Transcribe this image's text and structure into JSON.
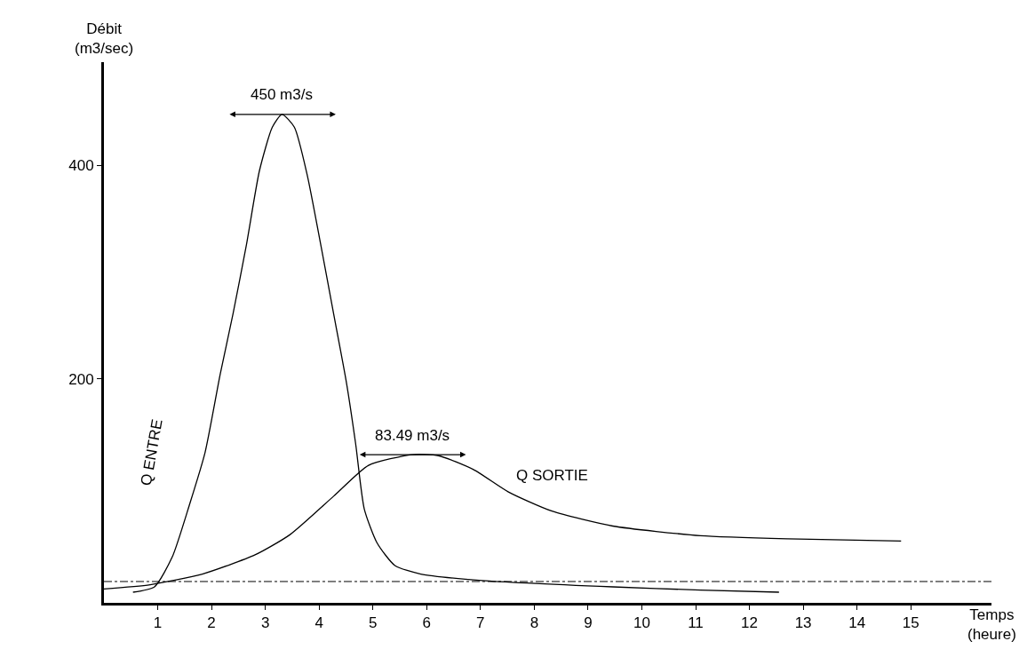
{
  "chart_data": {
    "type": "line",
    "xlabel": "Temps\n(heure)",
    "ylabel": "Débit\n(m3/sec)",
    "series": [
      {
        "name": "Q ENTRE",
        "color": "#000000",
        "x": [
          0.54,
          0.94,
          1.27,
          1.59,
          1.88,
          2.16,
          2.4,
          2.65,
          2.89,
          3.13,
          3.31,
          3.54,
          3.78,
          4.03,
          4.27,
          4.51,
          4.68,
          4.84,
          5.08,
          5.41,
          5.89,
          7.03,
          9.46,
          11.09,
          12.55
        ],
        "values": [
          0,
          5,
          33,
          82,
          131,
          204,
          261,
          326,
          395,
          436,
          448,
          436,
          391,
          326,
          261,
          196,
          139,
          78,
          46,
          25,
          17,
          11,
          5,
          2,
          0
        ]
      },
      {
        "name": "Q SORTIE",
        "color": "#000000",
        "x": [
          0,
          0.86,
          1.83,
          2.81,
          3.46,
          4.27,
          4.92,
          5.73,
          6.22,
          6.87,
          7.52,
          8.33,
          9.46,
          11.09,
          12.71,
          14.82
        ],
        "values": [
          3,
          7,
          17,
          35,
          54,
          90,
          119,
          129,
          128,
          115,
          94,
          76,
          62,
          53,
          50,
          48
        ]
      }
    ],
    "xlim": [
      0,
      16.5
    ],
    "ylim": [
      -10,
      497
    ],
    "xticks": [
      1,
      2,
      3,
      4,
      5,
      6,
      7,
      8,
      9,
      10,
      11,
      12,
      13,
      14,
      15
    ],
    "yticks": [
      200,
      400
    ],
    "ref_lines": [
      {
        "axis": "y",
        "value": 10,
        "color": "#000000",
        "line_style": "dashdot"
      }
    ],
    "annotations": [
      {
        "text": "450 m3/s",
        "x": 3.31,
        "y": 448
      },
      {
        "text": "83.49 m3/s",
        "x": 5.73,
        "y": 129
      }
    ],
    "legend": false,
    "marker": "none",
    "line_style": "solid"
  }
}
